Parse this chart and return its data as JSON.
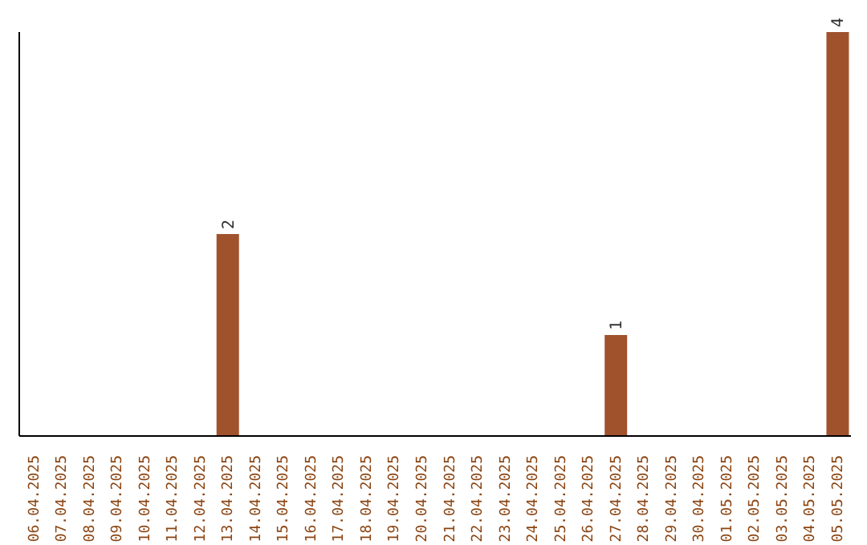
{
  "chart_data": {
    "type": "bar",
    "categories": [
      "06.04.2025",
      "07.04.2025",
      "08.04.2025",
      "09.04.2025",
      "10.04.2025",
      "11.04.2025",
      "12.04.2025",
      "13.04.2025",
      "14.04.2025",
      "15.04.2025",
      "16.04.2025",
      "17.04.2025",
      "18.04.2025",
      "19.04.2025",
      "20.04.2025",
      "21.04.2025",
      "22.04.2025",
      "23.04.2025",
      "24.04.2025",
      "25.04.2025",
      "26.04.2025",
      "27.04.2025",
      "28.04.2025",
      "29.04.2025",
      "30.04.2025",
      "01.05.2025",
      "02.05.2025",
      "03.05.2025",
      "04.05.2025",
      "05.05.2025"
    ],
    "values": [
      null,
      null,
      null,
      null,
      null,
      null,
      null,
      2,
      null,
      null,
      null,
      null,
      null,
      null,
      null,
      null,
      null,
      null,
      null,
      null,
      null,
      1,
      null,
      null,
      null,
      null,
      null,
      null,
      null,
      4
    ],
    "color": "#a0522d",
    "data_labels": true,
    "tick_labels": "x"
  }
}
